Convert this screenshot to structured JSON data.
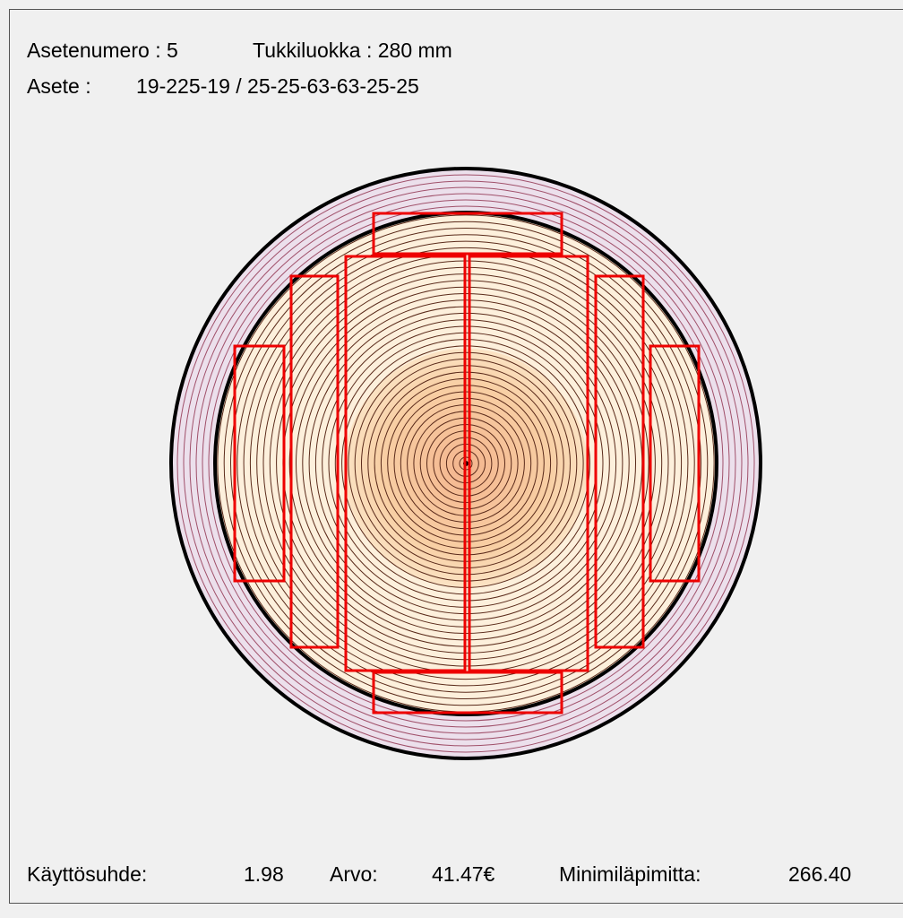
{
  "header": {
    "line1": [
      "Asetenumero : 5",
      "Tukkiluokka : 280 mm"
    ],
    "line2": [
      "Asete :",
      "19-225-19 / 25-25-63-63-25-25"
    ]
  },
  "footer": {
    "items": [
      {
        "label": "Käyttösuhde:",
        "value": "1.98"
      },
      {
        "label": "Arvo:",
        "value": "41.47€"
      },
      {
        "label": "Minimiläpimitta:",
        "value": "266.40"
      }
    ]
  }
}
